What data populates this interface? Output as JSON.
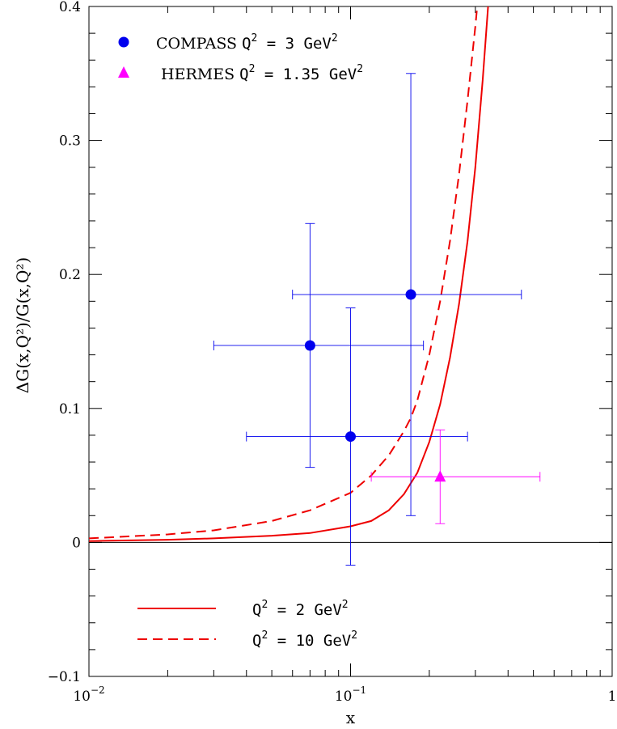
{
  "chart_data": {
    "type": "scatter",
    "x_scale": "log",
    "xlim": [
      0.01,
      1
    ],
    "ylim": [
      -0.1,
      0.4
    ],
    "xlabel": "x",
    "ylabel": "ΔG(x,Q²)/G(x,Q²)",
    "x_ticks": [
      {
        "value": 0.01,
        "base": "10",
        "exp": "−2"
      },
      {
        "value": 0.1,
        "base": "10",
        "exp": "−1"
      },
      {
        "value": 1,
        "base": "1",
        "exp": ""
      }
    ],
    "y_ticks": [
      {
        "value": -0.1,
        "label": "−0.1"
      },
      {
        "value": 0,
        "label": "0"
      },
      {
        "value": 0.1,
        "label": "0.1"
      },
      {
        "value": 0.2,
        "label": "0.2"
      },
      {
        "value": 0.3,
        "label": "0.3"
      },
      {
        "value": 0.4,
        "label": "0.4"
      }
    ],
    "zero_line": true,
    "series": [
      {
        "name": "COMPASS Q² = 3 GeV²",
        "kind": "points",
        "marker": "circle",
        "color": "#0000ee",
        "points": [
          {
            "x": 0.07,
            "y": 0.147,
            "xmin": 0.03,
            "xmax": 0.19,
            "ymin": 0.056,
            "ymax": 0.238
          },
          {
            "x": 0.1,
            "y": 0.079,
            "xmin": 0.04,
            "xmax": 0.28,
            "ymin": -0.017,
            "ymax": 0.175
          },
          {
            "x": 0.17,
            "y": 0.185,
            "xmin": 0.06,
            "xmax": 0.45,
            "ymin": 0.02,
            "ymax": 0.35
          }
        ]
      },
      {
        "name": "HERMES Q² = 1.35 GeV²",
        "kind": "points",
        "marker": "triangle",
        "color": "#ff00ff",
        "points": [
          {
            "x": 0.22,
            "y": 0.049,
            "xmin": 0.12,
            "xmax": 0.53,
            "ymin": 0.014,
            "ymax": 0.084
          }
        ]
      },
      {
        "name": "Q² = 2 GeV²",
        "kind": "line",
        "style": "solid",
        "color": "#ee0000",
        "x": [
          0.01,
          0.02,
          0.03,
          0.05,
          0.07,
          0.1,
          0.12,
          0.14,
          0.16,
          0.18,
          0.2,
          0.22,
          0.24,
          0.26,
          0.28,
          0.3,
          0.32,
          0.34
        ],
        "y": [
          0.001,
          0.002,
          0.003,
          0.005,
          0.007,
          0.012,
          0.016,
          0.024,
          0.036,
          0.052,
          0.075,
          0.103,
          0.138,
          0.178,
          0.225,
          0.28,
          0.345,
          0.415
        ]
      },
      {
        "name": "Q² = 10 GeV²",
        "kind": "line",
        "style": "dashed",
        "color": "#ee0000",
        "x": [
          0.01,
          0.02,
          0.03,
          0.05,
          0.07,
          0.1,
          0.12,
          0.14,
          0.16,
          0.17,
          0.18,
          0.2,
          0.22,
          0.24,
          0.26,
          0.28,
          0.3,
          0.31
        ],
        "y": [
          0.003,
          0.006,
          0.009,
          0.016,
          0.024,
          0.037,
          0.05,
          0.065,
          0.083,
          0.093,
          0.106,
          0.14,
          0.18,
          0.225,
          0.275,
          0.33,
          0.385,
          0.415
        ]
      }
    ],
    "legend": [
      {
        "marker": "circle",
        "color": "#0000ee",
        "name": "COMPASS",
        "q_pre": "Q",
        "q_sup": "2",
        "q_mid": " = 3 GeV",
        "unit_sup": "2"
      },
      {
        "marker": "triangle",
        "color": "#ff00ff",
        "name": "HERMES",
        "q_pre": "Q",
        "q_sup": "2",
        "q_mid": " = 1.35 GeV",
        "unit_sup": "2"
      },
      {
        "marker": "solid",
        "color": "#ee0000",
        "name": "",
        "q_pre": "Q",
        "q_sup": "2",
        "q_mid": " = 2 GeV",
        "unit_sup": "2"
      },
      {
        "marker": "dashed",
        "color": "#ee0000",
        "name": "",
        "q_pre": "Q",
        "q_sup": "2",
        "q_mid": " = 10 GeV",
        "unit_sup": "2"
      }
    ]
  }
}
